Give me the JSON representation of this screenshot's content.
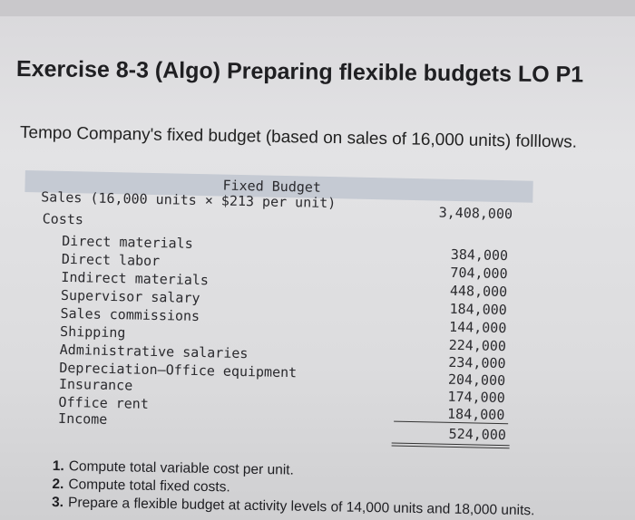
{
  "exercise": {
    "title": "Exercise 8-3 (Algo) Preparing flexible budgets LO P1",
    "intro": "Tempo Company's fixed budget (based on sales of 16,000 units) folllows."
  },
  "budget": {
    "header": "Fixed Budget",
    "sales_label": "Sales (16,000 units × $213 per unit)",
    "sales_amount": "3,408,000",
    "costs_label": "Costs",
    "cost_items": [
      {
        "label": "Direct materials",
        "amount": "384,000"
      },
      {
        "label": "Direct labor",
        "amount": "704,000"
      },
      {
        "label": "Indirect materials",
        "amount": "448,000"
      },
      {
        "label": "Supervisor salary",
        "amount": "184,000"
      },
      {
        "label": "Sales commissions",
        "amount": "144,000"
      },
      {
        "label": "Shipping",
        "amount": "224,000"
      },
      {
        "label": "Administrative salaries",
        "amount": "234,000"
      },
      {
        "label": "Depreciation—Office equipment",
        "amount": "204,000"
      },
      {
        "label": "Insurance",
        "amount": "174,000"
      },
      {
        "label": "Office rent",
        "amount": "184,000"
      }
    ],
    "income_label": "Income",
    "income_amount": "524,000"
  },
  "questions": [
    {
      "num": "1.",
      "text": "Compute total variable cost per unit."
    },
    {
      "num": "2.",
      "text": "Compute total fixed costs."
    },
    {
      "num": "3.",
      "text": "Prepare a flexible budget at activity levels of 14,000 units and 18,000 units."
    }
  ]
}
